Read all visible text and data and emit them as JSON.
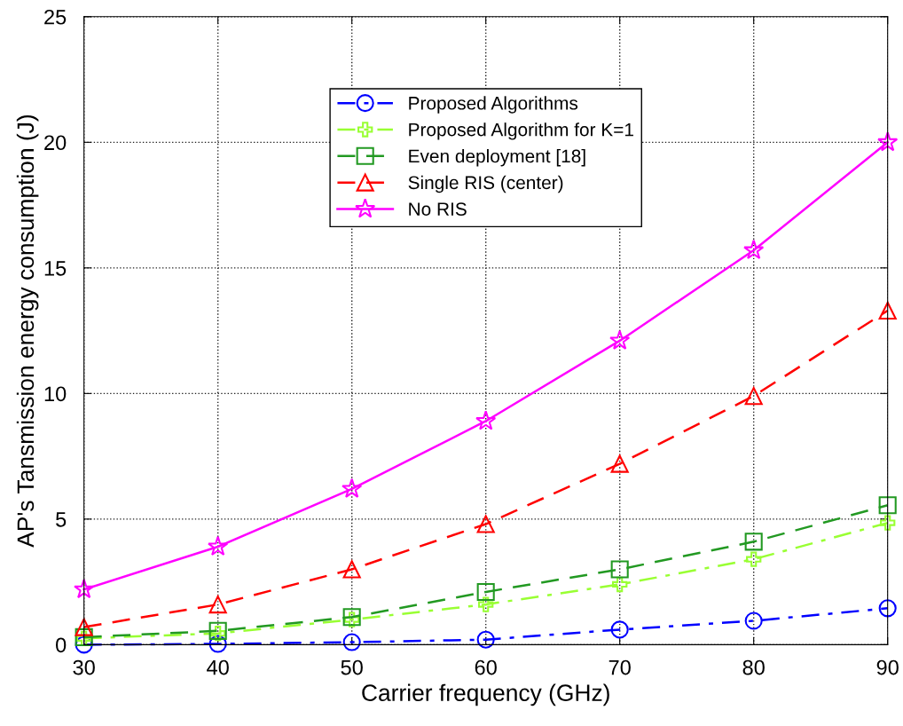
{
  "chart_data": {
    "type": "line",
    "xlabel": "Carrier frequency (GHz)",
    "ylabel": "AP's Tansmission energy consumption (J)",
    "x": [
      30,
      40,
      50,
      60,
      70,
      80,
      90
    ],
    "series": [
      {
        "name": "Proposed Algorithms",
        "color": "#0000ff",
        "marker": "circle",
        "line_style": "dashdot",
        "values": [
          0.0,
          0.03,
          0.1,
          0.2,
          0.6,
          0.95,
          1.45
        ]
      },
      {
        "name": "Proposed Algorithm for K=1",
        "color": "#99ff33",
        "marker": "cross",
        "line_style": "dashdot",
        "values": [
          0.25,
          0.45,
          1.0,
          1.6,
          2.4,
          3.4,
          4.85
        ]
      },
      {
        "name": "Even deployment [18]",
        "color": "#229922",
        "marker": "square",
        "line_style": "dashed",
        "values": [
          0.3,
          0.55,
          1.1,
          2.1,
          3.0,
          4.1,
          5.55
        ]
      },
      {
        "name": "Single RIS (center)",
        "color": "#ff0000",
        "marker": "triangle",
        "line_style": "dashed",
        "values": [
          0.7,
          1.6,
          3.0,
          4.8,
          7.2,
          9.9,
          13.3
        ]
      },
      {
        "name": "No RIS",
        "color": "#ff00ff",
        "marker": "star",
        "line_style": "solid",
        "values": [
          2.2,
          3.9,
          6.2,
          8.9,
          12.1,
          15.7,
          20.0
        ]
      }
    ],
    "xlim": [
      30,
      90
    ],
    "xticks": [
      30,
      40,
      50,
      60,
      70,
      80,
      90
    ],
    "ylim": [
      0,
      25
    ],
    "yticks": [
      0,
      5,
      10,
      15,
      20,
      25
    ],
    "grid": true,
    "legend": "top"
  }
}
